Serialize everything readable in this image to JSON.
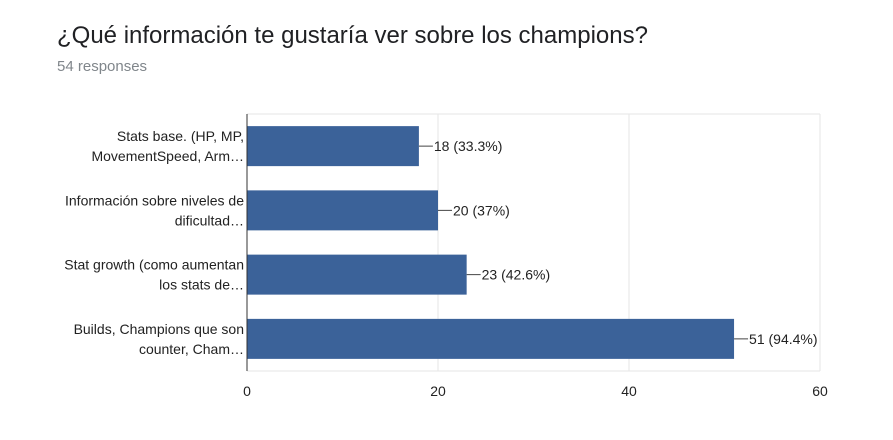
{
  "header": {
    "title": "¿Qué información te gustaría ver sobre los champions?",
    "subtitle": "54 responses"
  },
  "chart_data": {
    "type": "bar",
    "orientation": "horizontal",
    "categories": [
      [
        "Stats base. (HP, MP,",
        "MovementSpeed, Arm…"
      ],
      [
        "Información sobre niveles de",
        "dificultad…"
      ],
      [
        "Stat growth (como aumentan",
        "los stats de…"
      ],
      [
        "Builds, Champions que son",
        "counter, Cham…"
      ]
    ],
    "values": [
      18,
      20,
      23,
      51
    ],
    "labels": [
      "18 (33.3%)",
      "20 (37%)",
      "23 (42.6%)",
      "51 (94.4%)"
    ],
    "xlim": [
      0,
      60
    ],
    "xticks": [
      0,
      20,
      40,
      60
    ],
    "grid": true,
    "color": "#3b6299"
  }
}
